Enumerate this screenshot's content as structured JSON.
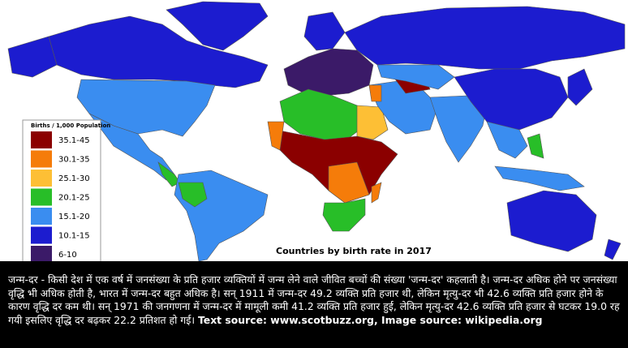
{
  "map": {
    "title": "Countries by birth rate in 2017",
    "legend": {
      "title": "Births / 1,000 Population",
      "items": [
        {
          "label": "35.1-45",
          "color": "#8b0000"
        },
        {
          "label": "30.1-35",
          "color": "#f57c0a"
        },
        {
          "label": "25.1-30",
          "color": "#fdbf35"
        },
        {
          "label": "20.1-25",
          "color": "#28be28"
        },
        {
          "label": "15.1-20",
          "color": "#3a8df0"
        },
        {
          "label": "10.1-15",
          "color": "#1c1ccf"
        },
        {
          "label": "6-10",
          "color": "#3b1a68"
        }
      ]
    }
  },
  "caption": {
    "text": "जन्म-दर - किसी देश में एक वर्ष में जनसंख्या के प्रति हजार व्यक्तियों में जन्म लेने वाले जीवित बच्चों की संख्या 'जन्म-दर' कहलाती है। जन्म-दर अधिक होने पर जनसंख्या वृद्धि भी अधिक होती है, भारत में जन्म-दर बहुत अधिक है। सन् 1911 में जन्म-दर 49.2 व्यक्ति प्रति हजार थी, लेकिन मृत्यु-दर भी 42.6 व्यक्ति प्रति हजार होने के कारण वृद्धि दर कम थी। सन् 1971 की जनगणना में जन्म-दर में मामूली कमी 41.2 व्यक्ति प्रति हजार हुई, लेकिन मृत्यु-दर 42.6 व्यक्ति प्रति हजार से घटकर 19.0 रह गयी इसलिए वृद्धि दर बढ़कर 22.2 प्रतिशत हो गई।",
    "source": "Text source: www.scotbuzz.org, Image source: wikipedia.org"
  }
}
